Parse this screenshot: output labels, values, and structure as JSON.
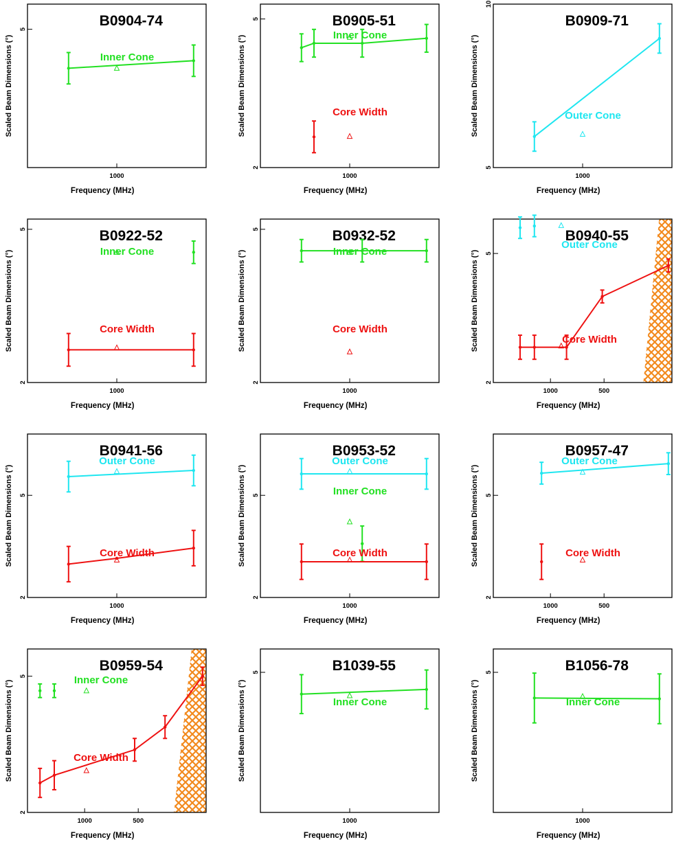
{
  "chart_data": [
    {
      "type": "line",
      "title": "B0904-74",
      "xlabel": "Frequency (MHz)",
      "ylabel": "Scaled Beam Dimensions (°)",
      "x_ticks": [
        "1000"
      ],
      "y_ticks": [
        {
          "v": 5,
          "label": "5"
        }
      ],
      "ylim": [
        2.8,
        5.4
      ],
      "xlim": [
        0,
        1
      ],
      "series": [
        {
          "name": "Inner Cone",
          "color": "#22e022",
          "x": [
            0.23,
            0.93
          ],
          "y": [
            4.38,
            4.5
          ],
          "err": [
            0.25,
            0.25
          ],
          "line": true
        }
      ],
      "refs": [
        {
          "color": "#22e022",
          "x": 0.5,
          "y": 4.38
        }
      ]
    },
    {
      "type": "line",
      "title": "B0905-51",
      "xlabel": "Frequency (MHz)",
      "ylabel": "Scaled Beam Dimensions (°)",
      "x_ticks": [
        "1000"
      ],
      "y_ticks": [
        {
          "v": 2,
          "label": "2"
        },
        {
          "v": 5,
          "label": "5"
        }
      ],
      "ylim": [
        2,
        5.3
      ],
      "xlim": [
        0,
        1
      ],
      "series": [
        {
          "name": "Inner Cone",
          "color": "#22e022",
          "x": [
            0.23,
            0.3,
            0.57,
            0.93
          ],
          "y": [
            4.42,
            4.51,
            4.51,
            4.61
          ],
          "err": [
            0.28,
            0.28,
            0.28,
            0.28
          ],
          "line": true
        },
        {
          "name": "Core Width",
          "color": "#ee1111",
          "x": [
            0.3
          ],
          "y": [
            2.62
          ],
          "err": [
            0.32
          ],
          "line": false
        }
      ],
      "refs": [
        {
          "color": "#22e022",
          "x": 0.5,
          "y": 4.63
        },
        {
          "color": "#ee1111",
          "x": 0.5,
          "y": 2.63
        }
      ]
    },
    {
      "type": "line",
      "title": "B0909-71",
      "xlabel": "Frequency (MHz)",
      "ylabel": "Scaled Beam Dimensions (°)",
      "x_ticks": [
        "1000"
      ],
      "y_ticks": [
        {
          "v": 5,
          "label": "5"
        },
        {
          "v": 10,
          "label": "10"
        }
      ],
      "ylim": [
        5,
        10
      ],
      "xlim": [
        0,
        1
      ],
      "series": [
        {
          "name": "Outer Cone",
          "color": "#1ee6f0",
          "x": [
            0.23,
            0.93
          ],
          "y": [
            5.95,
            8.95
          ],
          "err": [
            0.45,
            0.45
          ],
          "line": true
        }
      ],
      "refs": [
        {
          "color": "#1ee6f0",
          "x": 0.5,
          "y": 6.02
        }
      ]
    },
    {
      "type": "line",
      "title": "B0922-52",
      "xlabel": "Frequency (MHz)",
      "ylabel": "Scaled Beam Dimensions (°)",
      "x_ticks": [
        "1000"
      ],
      "y_ticks": [
        {
          "v": 2,
          "label": "2"
        },
        {
          "v": 5,
          "label": "5"
        }
      ],
      "ylim": [
        2,
        5.2
      ],
      "xlim": [
        0,
        1
      ],
      "series": [
        {
          "name": "Inner Cone",
          "color": "#22e022",
          "x": [
            0.93
          ],
          "y": [
            4.55
          ],
          "err": [
            0.22
          ],
          "line": false
        },
        {
          "name": "Core Width",
          "color": "#ee1111",
          "x": [
            0.23,
            0.93
          ],
          "y": [
            2.64,
            2.64
          ],
          "err": [
            0.32,
            0.32
          ],
          "line": true
        }
      ],
      "refs": [
        {
          "color": "#22e022",
          "x": 0.5,
          "y": 4.55
        },
        {
          "color": "#ee1111",
          "x": 0.5,
          "y": 2.68
        }
      ]
    },
    {
      "type": "line",
      "title": "B0932-52",
      "xlabel": "Frequency (MHz)",
      "ylabel": "Scaled Beam Dimensions (°)",
      "x_ticks": [
        "1000"
      ],
      "y_ticks": [
        {
          "v": 2,
          "label": "2"
        },
        {
          "v": 5,
          "label": "5"
        }
      ],
      "ylim": [
        2,
        5.2
      ],
      "xlim": [
        0,
        1
      ],
      "series": [
        {
          "name": "Inner Cone",
          "color": "#22e022",
          "x": [
            0.23,
            0.57,
            0.93
          ],
          "y": [
            4.58,
            4.58,
            4.58
          ],
          "err": [
            0.22,
            0.22,
            0.22
          ],
          "line": true
        }
      ],
      "refs": [
        {
          "color": "#22e022",
          "x": 0.5,
          "y": 4.55
        },
        {
          "color": "#ee1111",
          "x": 0.5,
          "y": 2.6
        }
      ]
    },
    {
      "type": "line",
      "title": "B0940-55",
      "xlabel": "Frequency (MHz)",
      "ylabel": "Scaled Beam Dimensions (°)",
      "x_ticks": [
        "1000",
        "500"
      ],
      "y_ticks": [
        {
          "v": 2,
          "label": "2"
        },
        {
          "v": 5,
          "label": "5"
        }
      ],
      "ylim": [
        2,
        5.8
      ],
      "xlim": [
        0,
        1
      ],
      "hatch": [
        0.84,
        1
      ],
      "series": [
        {
          "name": "Outer Cone",
          "color": "#1ee6f0",
          "x": [
            0.15,
            0.23
          ],
          "y": [
            5.6,
            5.64
          ],
          "err": [
            0.25,
            0.25
          ],
          "line": false
        },
        {
          "name": "Core Width",
          "color": "#ee1111",
          "x": [
            0.15,
            0.23,
            0.41,
            0.61,
            0.98
          ],
          "y": [
            2.82,
            2.82,
            2.82,
            4.0,
            4.72
          ],
          "err": [
            0.28,
            0.28,
            0.28,
            0.15,
            0.15
          ],
          "line": true
        }
      ],
      "refs": [
        {
          "color": "#1ee6f0",
          "x": 0.38,
          "y": 5.65
        },
        {
          "color": "#ee1111",
          "x": 0.38,
          "y": 2.85
        }
      ]
    },
    {
      "type": "line",
      "title": "B0941-56",
      "xlabel": "Frequency (MHz)",
      "ylabel": "Scaled Beam Dimensions (°)",
      "x_ticks": [
        "1000"
      ],
      "y_ticks": [
        {
          "v": 2,
          "label": "2"
        },
        {
          "v": 5,
          "label": "5"
        }
      ],
      "ylim": [
        2,
        6.8
      ],
      "xlim": [
        0,
        1
      ],
      "series": [
        {
          "name": "Outer Cone",
          "color": "#1ee6f0",
          "x": [
            0.23,
            0.93
          ],
          "y": [
            5.55,
            5.73
          ],
          "err": [
            0.45,
            0.45
          ],
          "line": true
        },
        {
          "name": "Core Width",
          "color": "#ee1111",
          "x": [
            0.23,
            0.5,
            0.93
          ],
          "y": [
            2.98,
            3.15,
            3.45
          ],
          "err": [
            0.52,
            0,
            0.52
          ],
          "line": true
        }
      ],
      "refs": [
        {
          "color": "#1ee6f0",
          "x": 0.5,
          "y": 5.7
        },
        {
          "color": "#ee1111",
          "x": 0.5,
          "y": 3.1
        }
      ]
    },
    {
      "type": "line",
      "title": "B0953-52",
      "xlabel": "Frequency (MHz)",
      "ylabel": "Scaled Beam Dimensions (°)",
      "x_ticks": [
        "1000"
      ],
      "y_ticks": [
        {
          "v": 2,
          "label": "2"
        },
        {
          "v": 5,
          "label": "5"
        }
      ],
      "ylim": [
        2,
        6.8
      ],
      "xlim": [
        0,
        1
      ],
      "series": [
        {
          "name": "Outer Cone",
          "color": "#1ee6f0",
          "x": [
            0.23,
            0.93
          ],
          "y": [
            5.63,
            5.63
          ],
          "err": [
            0.45,
            0.45
          ],
          "line": true
        },
        {
          "name": "Inner Cone",
          "color": "#22e022",
          "x": [
            0.57
          ],
          "y": [
            3.58
          ],
          "err": [
            0.52
          ],
          "line": false
        },
        {
          "name": "Core Width",
          "color": "#ee1111",
          "x": [
            0.23,
            0.93
          ],
          "y": [
            3.05,
            3.05
          ],
          "err": [
            0.52,
            0.52
          ],
          "line": true
        }
      ],
      "refs": [
        {
          "color": "#1ee6f0",
          "x": 0.5,
          "y": 5.7
        },
        {
          "color": "#22e022",
          "x": 0.5,
          "y": 4.22
        },
        {
          "color": "#ee1111",
          "x": 0.5,
          "y": 3.1
        }
      ]
    },
    {
      "type": "line",
      "title": "B0957-47",
      "xlabel": "Frequency (MHz)",
      "ylabel": "Scaled Beam Dimensions (°)",
      "x_ticks": [
        "1000",
        "500"
      ],
      "y_ticks": [
        {
          "v": 2,
          "label": "2"
        },
        {
          "v": 5,
          "label": "5"
        }
      ],
      "ylim": [
        2,
        6.8
      ],
      "xlim": [
        0,
        1
      ],
      "series": [
        {
          "name": "Outer Cone",
          "color": "#1ee6f0",
          "x": [
            0.27,
            0.98
          ],
          "y": [
            5.65,
            5.93
          ],
          "err": [
            0.32,
            0.32
          ],
          "line": true
        },
        {
          "name": "Core Width",
          "color": "#ee1111",
          "x": [
            0.27
          ],
          "y": [
            3.05
          ],
          "err": [
            0.52
          ],
          "line": false
        }
      ],
      "refs": [
        {
          "color": "#1ee6f0",
          "x": 0.5,
          "y": 5.68
        },
        {
          "color": "#ee1111",
          "x": 0.5,
          "y": 3.1
        }
      ]
    },
    {
      "type": "line",
      "title": "B0959-54",
      "xlabel": "Frequency (MHz)",
      "ylabel": "Scaled Beam Dimensions (°)",
      "x_ticks": [
        "1000",
        "500"
      ],
      "y_ticks": [
        {
          "v": 2,
          "label": "2"
        },
        {
          "v": 5,
          "label": "5"
        }
      ],
      "ylim": [
        2,
        5.6
      ],
      "xlim": [
        0,
        1
      ],
      "hatch": [
        0.82,
        1
      ],
      "series": [
        {
          "name": "Inner Cone",
          "color": "#22e022",
          "x": [
            0.07,
            0.15
          ],
          "y": [
            4.68,
            4.68
          ],
          "err": [
            0.15,
            0.15
          ],
          "line": false
        },
        {
          "name": "Core Width",
          "color": "#ee1111",
          "x": [
            0.07,
            0.15,
            0.6,
            0.77,
            0.98
          ],
          "y": [
            2.65,
            2.82,
            3.38,
            3.88,
            5.0
          ],
          "err": [
            0.32,
            0.32,
            0.25,
            0.25,
            0.2
          ],
          "line": true
        }
      ],
      "refs": [
        {
          "color": "#22e022",
          "x": 0.33,
          "y": 4.68
        },
        {
          "color": "#ee1111",
          "x": 0.33,
          "y": 2.92
        }
      ]
    },
    {
      "type": "line",
      "title": "B1039-55",
      "xlabel": "Frequency (MHz)",
      "ylabel": "Scaled Beam Dimensions (°)",
      "x_ticks": [
        "1000"
      ],
      "y_ticks": [
        {
          "v": 5,
          "label": "5"
        }
      ],
      "ylim": [
        3.2,
        5.3
      ],
      "xlim": [
        0,
        1
      ],
      "series": [
        {
          "name": "Inner Cone",
          "color": "#22e022",
          "x": [
            0.23,
            0.93
          ],
          "y": [
            4.72,
            4.78
          ],
          "err": [
            0.25,
            0.25
          ],
          "line": true
        }
      ],
      "refs": [
        {
          "color": "#22e022",
          "x": 0.5,
          "y": 4.7
        }
      ]
    },
    {
      "type": "line",
      "title": "B1056-78",
      "xlabel": "Frequency (MHz)",
      "ylabel": "Scaled Beam Dimensions (°)",
      "x_ticks": [
        "1000"
      ],
      "y_ticks": [
        {
          "v": 5,
          "label": "5"
        }
      ],
      "ylim": [
        3.2,
        5.3
      ],
      "xlim": [
        0,
        1
      ],
      "series": [
        {
          "name": "Inner Cone",
          "color": "#22e022",
          "x": [
            0.23,
            0.93
          ],
          "y": [
            4.67,
            4.66
          ],
          "err": [
            0.32,
            0.32
          ],
          "line": true
        }
      ],
      "refs": [
        {
          "color": "#22e022",
          "x": 0.5,
          "y": 4.69
        }
      ]
    }
  ]
}
